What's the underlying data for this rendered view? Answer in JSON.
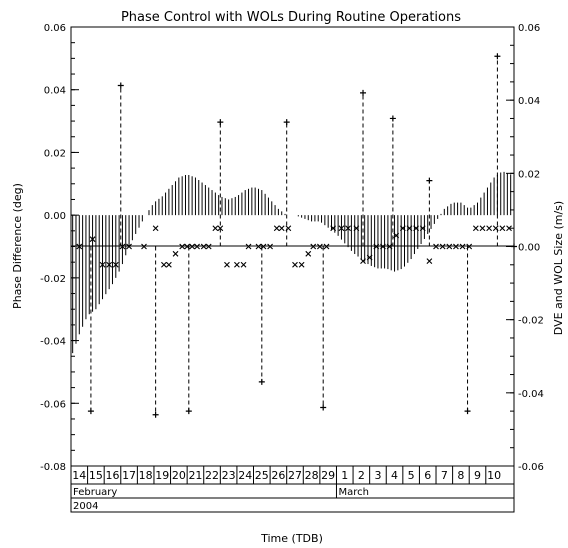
{
  "chart_data": {
    "type": "combined",
    "title": "Phase Control with WOLs During Routine Operations",
    "xlabel": "Time (TDB)",
    "ylabel_left": "Phase Difference (deg)",
    "ylabel_right": "DVE and WOL Size (m/s)",
    "ylim_left": [
      -0.08,
      0.06
    ],
    "ylim_right": [
      -0.06,
      0.06
    ],
    "yticks_left": [
      "0.06",
      "0.04",
      "0.02",
      "0.00",
      "-0.02",
      "-0.04",
      "-0.06",
      "-0.08"
    ],
    "yticks_right": [
      "0.06",
      "0.04",
      "0.02",
      "0.00",
      "-0.02",
      "-0.04",
      "-0.06"
    ],
    "ytick_values_left": [
      0.06,
      0.04,
      0.02,
      0.0,
      -0.02,
      -0.04,
      -0.06,
      -0.08
    ],
    "ytick_values_right": [
      0.06,
      0.04,
      0.02,
      0.0,
      -0.02,
      -0.04,
      -0.06
    ],
    "x_start_day": 14,
    "x_end_day": 40.7,
    "day_labels": [
      "14",
      "15",
      "16",
      "17",
      "18",
      "19",
      "20",
      "21",
      "22",
      "23",
      "24",
      "25",
      "26",
      "27",
      "28",
      "29",
      "1",
      "2",
      "3",
      "4",
      "5",
      "6",
      "7",
      "8",
      "9",
      "10"
    ],
    "months": [
      {
        "name": "February",
        "start_day": 14
      },
      {
        "name": "March",
        "start_day": 30
      }
    ],
    "year": "2004",
    "phase_difference_series": {
      "name": "Phase difference",
      "t": [
        14.1,
        14.5,
        15.0,
        15.5,
        16.0,
        16.5,
        17.0,
        17.5,
        18.0,
        18.5,
        19.0,
        19.5,
        20.0,
        20.5,
        21.0,
        21.5,
        22.0,
        22.5,
        23.0,
        23.5,
        24.0,
        24.5,
        25.0,
        25.5,
        26.0,
        26.5,
        27.0,
        27.5,
        28.0,
        28.5,
        29.0,
        29.5,
        30.0,
        30.5,
        31.0,
        31.5,
        32.0,
        32.5,
        33.0,
        33.5,
        34.0,
        34.5,
        35.0,
        35.5,
        36.0,
        36.5,
        37.0,
        37.5,
        38.0,
        38.5,
        39.0,
        39.5,
        40.0,
        40.5
      ],
      "values": [
        -0.044,
        -0.038,
        -0.032,
        -0.03,
        -0.026,
        -0.022,
        -0.017,
        -0.01,
        -0.005,
        0.0,
        0.004,
        0.006,
        0.009,
        0.012,
        0.013,
        0.012,
        0.01,
        0.008,
        0.006,
        0.005,
        0.006,
        0.008,
        0.009,
        0.008,
        0.005,
        0.002,
        0.0,
        0.0,
        -0.001,
        -0.002,
        -0.002,
        -0.004,
        -0.006,
        -0.009,
        -0.012,
        -0.014,
        -0.016,
        -0.017,
        -0.017,
        -0.018,
        -0.017,
        -0.014,
        -0.01,
        -0.006,
        -0.002,
        0.002,
        0.004,
        0.004,
        0.002,
        0.004,
        0.008,
        0.012,
        0.014,
        0.013
      ]
    },
    "dve_markers": {
      "name": "DVE",
      "t": [
        14.5,
        15.3,
        15.9,
        16.3,
        16.7,
        17.1,
        17.5,
        18.4,
        19.1,
        19.6,
        19.9,
        20.3,
        20.7,
        21.0,
        21.3,
        21.6,
        22.0,
        22.3,
        22.7,
        23.0,
        23.4,
        24.0,
        24.4,
        24.7,
        25.3,
        25.6,
        26.0,
        26.4,
        26.7,
        27.1,
        27.5,
        27.9,
        28.3,
        28.6,
        29.0,
        29.4,
        29.8,
        30.3,
        30.7,
        31.2,
        31.6,
        32.0,
        32.4,
        32.8,
        33.2,
        33.6,
        34.0,
        34.4,
        34.8,
        35.2,
        35.6,
        36.0,
        36.4,
        36.8,
        37.2,
        37.6,
        38.0,
        38.4,
        38.8,
        39.2,
        39.6,
        40.0,
        40.4
      ],
      "values": [
        0.0,
        0.002,
        -0.005,
        -0.005,
        -0.005,
        0.0,
        0.0,
        0.0,
        0.005,
        -0.005,
        -0.005,
        -0.002,
        0.0,
        0.0,
        0.0,
        0.0,
        0.0,
        0.0,
        0.005,
        0.005,
        -0.005,
        -0.005,
        -0.005,
        0.0,
        0.0,
        0.0,
        0.0,
        0.005,
        0.005,
        0.005,
        -0.005,
        -0.005,
        -0.002,
        0.0,
        0.0,
        0.0,
        0.005,
        0.005,
        0.005,
        0.005,
        -0.004,
        -0.003,
        0.0,
        0.0,
        0.0,
        0.003,
        0.005,
        0.005,
        0.005,
        0.005,
        -0.004,
        0.0,
        0.0,
        0.0,
        0.0,
        0.0,
        0.0,
        0.005,
        0.005,
        0.005,
        0.005,
        0.005,
        0.005
      ]
    },
    "wol_series": {
      "name": "WOL",
      "t": [
        15.2,
        17.0,
        19.1,
        21.1,
        23.0,
        25.5,
        27.0,
        29.2,
        31.6,
        33.4,
        35.6,
        37.9,
        39.7,
        40.7
      ],
      "values": [
        -0.045,
        0.044,
        -0.046,
        -0.045,
        0.034,
        -0.037,
        0.034,
        -0.044,
        0.042,
        0.035,
        0.018,
        -0.045,
        0.052,
        0.0
      ]
    }
  }
}
